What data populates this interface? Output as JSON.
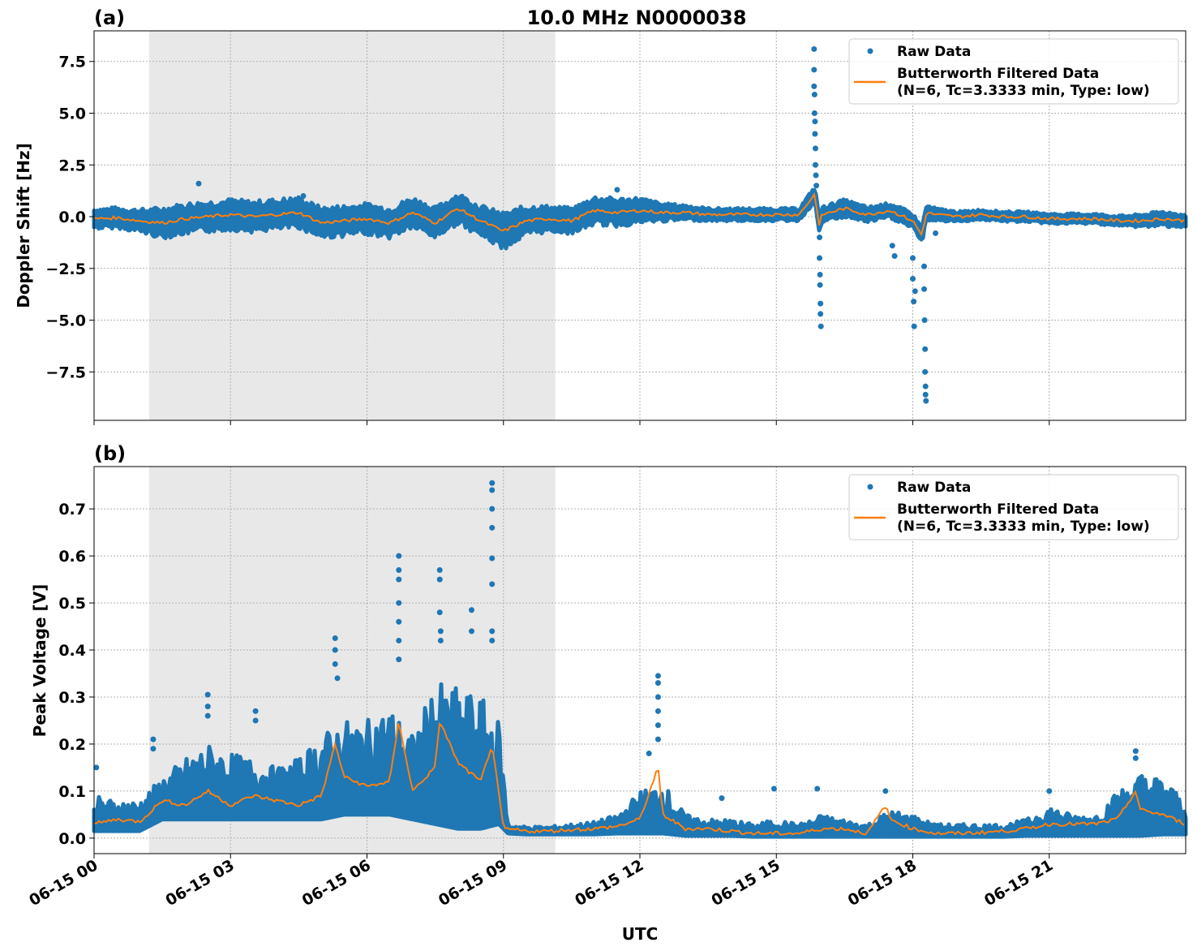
{
  "chart_data": [
    {
      "type": "scatter",
      "panel_label": "(a)",
      "title": "10.0 MHz N0000038",
      "xlabel": "",
      "ylabel": "Doppler Shift [Hz]",
      "ylim": [
        -9.84,
        8.98
      ],
      "xlim_hours": [
        0,
        24
      ],
      "yticks": [
        7.5,
        5.0,
        2.5,
        0.0,
        -2.5,
        -5.0,
        -7.5
      ],
      "ytick_labels": [
        "7.5",
        "5.0",
        "2.5",
        "0.0",
        "−2.5",
        "−5.0",
        "−7.5"
      ],
      "grid": true,
      "shaded_interval_hours": [
        1.21,
        10.14
      ],
      "legend": {
        "placement": "top-right",
        "entries": [
          "Raw Data",
          "Butterworth Filtered Data",
          "(N=6, Tc=3.3333 min, Type: low)"
        ]
      },
      "series": [
        {
          "name": "Butterworth Filtered Data",
          "color": "#ff7f0e",
          "t": [
            0,
            0.5,
            1,
            1.5,
            2,
            2.5,
            3,
            3.5,
            4,
            4.5,
            5,
            5.5,
            6,
            6.5,
            7,
            7.5,
            8,
            8.5,
            9,
            9.5,
            10,
            10.5,
            11,
            11.5,
            12,
            12.5,
            13,
            13.5,
            14,
            14.5,
            15,
            15.5,
            15.85,
            15.95,
            16,
            16.5,
            17,
            17.5,
            18,
            18.2,
            18.3,
            18.5,
            19,
            19.5,
            20,
            20.5,
            21,
            21.5,
            22,
            22.5,
            23,
            23.5,
            24
          ],
          "values": [
            -0.1,
            -0.05,
            -0.2,
            -0.3,
            -0.1,
            0.0,
            0.1,
            0.0,
            0.1,
            0.2,
            -0.3,
            -0.2,
            -0.1,
            -0.3,
            0.2,
            -0.3,
            0.4,
            -0.2,
            -0.7,
            -0.2,
            -0.1,
            -0.2,
            0.3,
            0.2,
            0.3,
            0.2,
            0.2,
            0.1,
            0.1,
            0.1,
            0.1,
            0.1,
            1.1,
            -0.6,
            0.1,
            0.4,
            0.1,
            0.3,
            -0.2,
            -0.9,
            0.2,
            0.1,
            0.0,
            0.1,
            0.0,
            0.0,
            -0.1,
            -0.1,
            -0.1,
            -0.2,
            -0.2,
            -0.1,
            -0.2
          ]
        },
        {
          "name": "Raw Data",
          "color": "#1f77b4",
          "band_halfwidth": [
            0.4,
            0.4,
            0.45,
            0.6,
            0.6,
            0.6,
            0.6,
            0.6,
            0.6,
            0.6,
            0.6,
            0.6,
            0.6,
            0.6,
            0.6,
            0.6,
            0.6,
            0.6,
            0.7,
            0.6,
            0.5,
            0.5,
            0.55,
            0.55,
            0.5,
            0.35,
            0.3,
            0.25,
            0.25,
            0.25,
            0.25,
            0.25,
            0.3,
            0.3,
            0.3,
            0.35,
            0.3,
            0.3,
            0.3,
            0.3,
            0.3,
            0.25,
            0.2,
            0.2,
            0.2,
            0.2,
            0.2,
            0.2,
            0.2,
            0.2,
            0.25,
            0.3,
            0.25
          ],
          "outliers": [
            [
              15.83,
              8.1
            ],
            [
              15.83,
              7.1
            ],
            [
              15.83,
              6.3
            ],
            [
              15.84,
              5.9
            ],
            [
              15.84,
              5.0
            ],
            [
              15.85,
              4.6
            ],
            [
              15.85,
              4.0
            ],
            [
              15.86,
              3.3
            ],
            [
              15.86,
              2.5
            ],
            [
              15.87,
              2.0
            ],
            [
              15.88,
              1.5
            ],
            [
              15.95,
              -1.0
            ],
            [
              15.95,
              -2.0
            ],
            [
              15.96,
              -2.8
            ],
            [
              15.96,
              -3.3
            ],
            [
              15.97,
              -4.2
            ],
            [
              15.97,
              -4.7
            ],
            [
              15.98,
              -5.3
            ],
            [
              17.55,
              -1.4
            ],
            [
              17.6,
              -1.9
            ],
            [
              18.0,
              -2.0
            ],
            [
              18.0,
              -3.0
            ],
            [
              18.02,
              -4.1
            ],
            [
              18.03,
              -5.3
            ],
            [
              18.05,
              -3.6
            ],
            [
              18.25,
              -2.4
            ],
            [
              18.25,
              -3.5
            ],
            [
              18.26,
              -5.0
            ],
            [
              18.27,
              -6.4
            ],
            [
              18.27,
              -7.5
            ],
            [
              18.28,
              -8.2
            ],
            [
              18.28,
              -8.6
            ],
            [
              18.29,
              -8.9
            ],
            [
              18.5,
              -0.8
            ],
            [
              2.3,
              1.6
            ],
            [
              4.6,
              1.0
            ],
            [
              11.5,
              1.3
            ]
          ]
        }
      ]
    },
    {
      "type": "scatter",
      "panel_label": "(b)",
      "title": "",
      "xlabel": "UTC",
      "ylabel": "Peak Voltage [V]",
      "ylim": [
        -0.033,
        0.79
      ],
      "xlim_hours": [
        0,
        24
      ],
      "yticks": [
        0.0,
        0.1,
        0.2,
        0.3,
        0.4,
        0.5,
        0.6,
        0.7
      ],
      "ytick_labels": [
        "0.0",
        "0.1",
        "0.2",
        "0.3",
        "0.4",
        "0.5",
        "0.6",
        "0.7"
      ],
      "xticks_hours": [
        0,
        3,
        6,
        9,
        12,
        15,
        18,
        21
      ],
      "xtick_labels": [
        "06-15 00",
        "06-15 03",
        "06-15 06",
        "06-15 09",
        "06-15 12",
        "06-15 15",
        "06-15 18",
        "06-15 21"
      ],
      "grid": true,
      "shaded_interval_hours": [
        1.21,
        10.14
      ],
      "legend": {
        "placement": "top-right",
        "entries": [
          "Raw Data",
          "Butterworth Filtered Data",
          "(N=6, Tc=3.3333 min, Type: low)"
        ]
      },
      "series": [
        {
          "name": "Butterworth Filtered Data",
          "color": "#ff7f0e",
          "t": [
            0,
            0.5,
            1,
            1.5,
            2,
            2.5,
            3,
            3.5,
            4,
            4.5,
            5,
            5.3,
            5.5,
            6,
            6.5,
            6.7,
            7,
            7.5,
            7.6,
            8,
            8.5,
            8.75,
            9,
            9.5,
            10,
            10.5,
            11,
            11.5,
            12,
            12.4,
            12.5,
            13,
            13.5,
            14,
            14.5,
            15,
            15.5,
            16,
            16.5,
            17,
            17.4,
            17.5,
            18,
            18.5,
            19,
            19.5,
            20,
            20.5,
            21,
            21.5,
            22,
            22.5,
            22.9,
            23,
            23.5,
            24
          ],
          "values": [
            0.03,
            0.04,
            0.035,
            0.08,
            0.07,
            0.1,
            0.07,
            0.09,
            0.08,
            0.07,
            0.09,
            0.2,
            0.13,
            0.11,
            0.12,
            0.25,
            0.1,
            0.15,
            0.25,
            0.16,
            0.12,
            0.2,
            0.02,
            0.015,
            0.015,
            0.018,
            0.02,
            0.025,
            0.04,
            0.15,
            0.05,
            0.02,
            0.02,
            0.015,
            0.01,
            0.01,
            0.01,
            0.02,
            0.02,
            0.01,
            0.07,
            0.04,
            0.02,
            0.01,
            0.01,
            0.012,
            0.015,
            0.02,
            0.03,
            0.03,
            0.03,
            0.04,
            0.1,
            0.06,
            0.05,
            0.03
          ]
        },
        {
          "name": "Raw Data",
          "color": "#1f77b4",
          "t": [
            0,
            0.5,
            1,
            1.5,
            2,
            2.5,
            3,
            3.5,
            4,
            4.5,
            5,
            5.5,
            6,
            6.5,
            7,
            7.5,
            8,
            8.5,
            8.9,
            9.1,
            9.5,
            10,
            10.5,
            11,
            11.5,
            12,
            12.5,
            13,
            13.5,
            14,
            14.5,
            15,
            15.5,
            16,
            16.5,
            17,
            17.5,
            18,
            18.5,
            19,
            19.5,
            20,
            20.5,
            21,
            21.5,
            22,
            22.5,
            23,
            23.5,
            24
          ],
          "low": [
            0.015,
            0.015,
            0.015,
            0.04,
            0.04,
            0.04,
            0.04,
            0.04,
            0.04,
            0.04,
            0.04,
            0.05,
            0.05,
            0.05,
            0.04,
            0.03,
            0.02,
            0.02,
            0.03,
            0.01,
            0.008,
            0.008,
            0.008,
            0.008,
            0.01,
            0.01,
            0.01,
            0.005,
            0.005,
            0.005,
            0.003,
            0.003,
            0.003,
            0.003,
            0.003,
            0.003,
            0.003,
            0.003,
            0.003,
            0.003,
            0.003,
            0.003,
            0.005,
            0.005,
            0.005,
            0.005,
            0.005,
            0.005,
            0.008,
            0.008
          ],
          "high": [
            0.09,
            0.08,
            0.08,
            0.13,
            0.17,
            0.2,
            0.18,
            0.17,
            0.15,
            0.17,
            0.22,
            0.25,
            0.25,
            0.28,
            0.22,
            0.33,
            0.32,
            0.3,
            0.25,
            0.03,
            0.025,
            0.025,
            0.03,
            0.035,
            0.05,
            0.1,
            0.12,
            0.05,
            0.04,
            0.04,
            0.03,
            0.04,
            0.03,
            0.05,
            0.04,
            0.03,
            0.06,
            0.05,
            0.03,
            0.03,
            0.03,
            0.03,
            0.04,
            0.07,
            0.05,
            0.05,
            0.1,
            0.14,
            0.13,
            0.08
          ],
          "outliers": [
            [
              2.5,
              0.305
            ],
            [
              2.5,
              0.28
            ],
            [
              2.5,
              0.26
            ],
            [
              3.55,
              0.27
            ],
            [
              3.55,
              0.25
            ],
            [
              5.3,
              0.425
            ],
            [
              5.3,
              0.4
            ],
            [
              5.3,
              0.37
            ],
            [
              5.35,
              0.34
            ],
            [
              6.7,
              0.6
            ],
            [
              6.7,
              0.57
            ],
            [
              6.7,
              0.55
            ],
            [
              6.7,
              0.5
            ],
            [
              6.7,
              0.46
            ],
            [
              6.7,
              0.42
            ],
            [
              6.7,
              0.38
            ],
            [
              7.6,
              0.57
            ],
            [
              7.6,
              0.55
            ],
            [
              7.6,
              0.48
            ],
            [
              7.62,
              0.44
            ],
            [
              7.62,
              0.42
            ],
            [
              8.3,
              0.485
            ],
            [
              8.3,
              0.44
            ],
            [
              8.75,
              0.755
            ],
            [
              8.75,
              0.74
            ],
            [
              8.75,
              0.7
            ],
            [
              8.75,
              0.66
            ],
            [
              8.75,
              0.595
            ],
            [
              8.75,
              0.54
            ],
            [
              8.75,
              0.44
            ],
            [
              8.75,
              0.42
            ],
            [
              12.4,
              0.345
            ],
            [
              12.4,
              0.33
            ],
            [
              12.4,
              0.3
            ],
            [
              12.4,
              0.27
            ],
            [
              12.4,
              0.24
            ],
            [
              12.4,
              0.21
            ],
            [
              12.2,
              0.18
            ],
            [
              13.8,
              0.085
            ],
            [
              14.95,
              0.105
            ],
            [
              15.9,
              0.105
            ],
            [
              17.4,
              0.1
            ],
            [
              21.0,
              0.1
            ],
            [
              22.9,
              0.185
            ],
            [
              22.9,
              0.17
            ],
            [
              1.3,
              0.21
            ],
            [
              1.3,
              0.19
            ],
            [
              0.05,
              0.15
            ]
          ]
        }
      ]
    }
  ]
}
